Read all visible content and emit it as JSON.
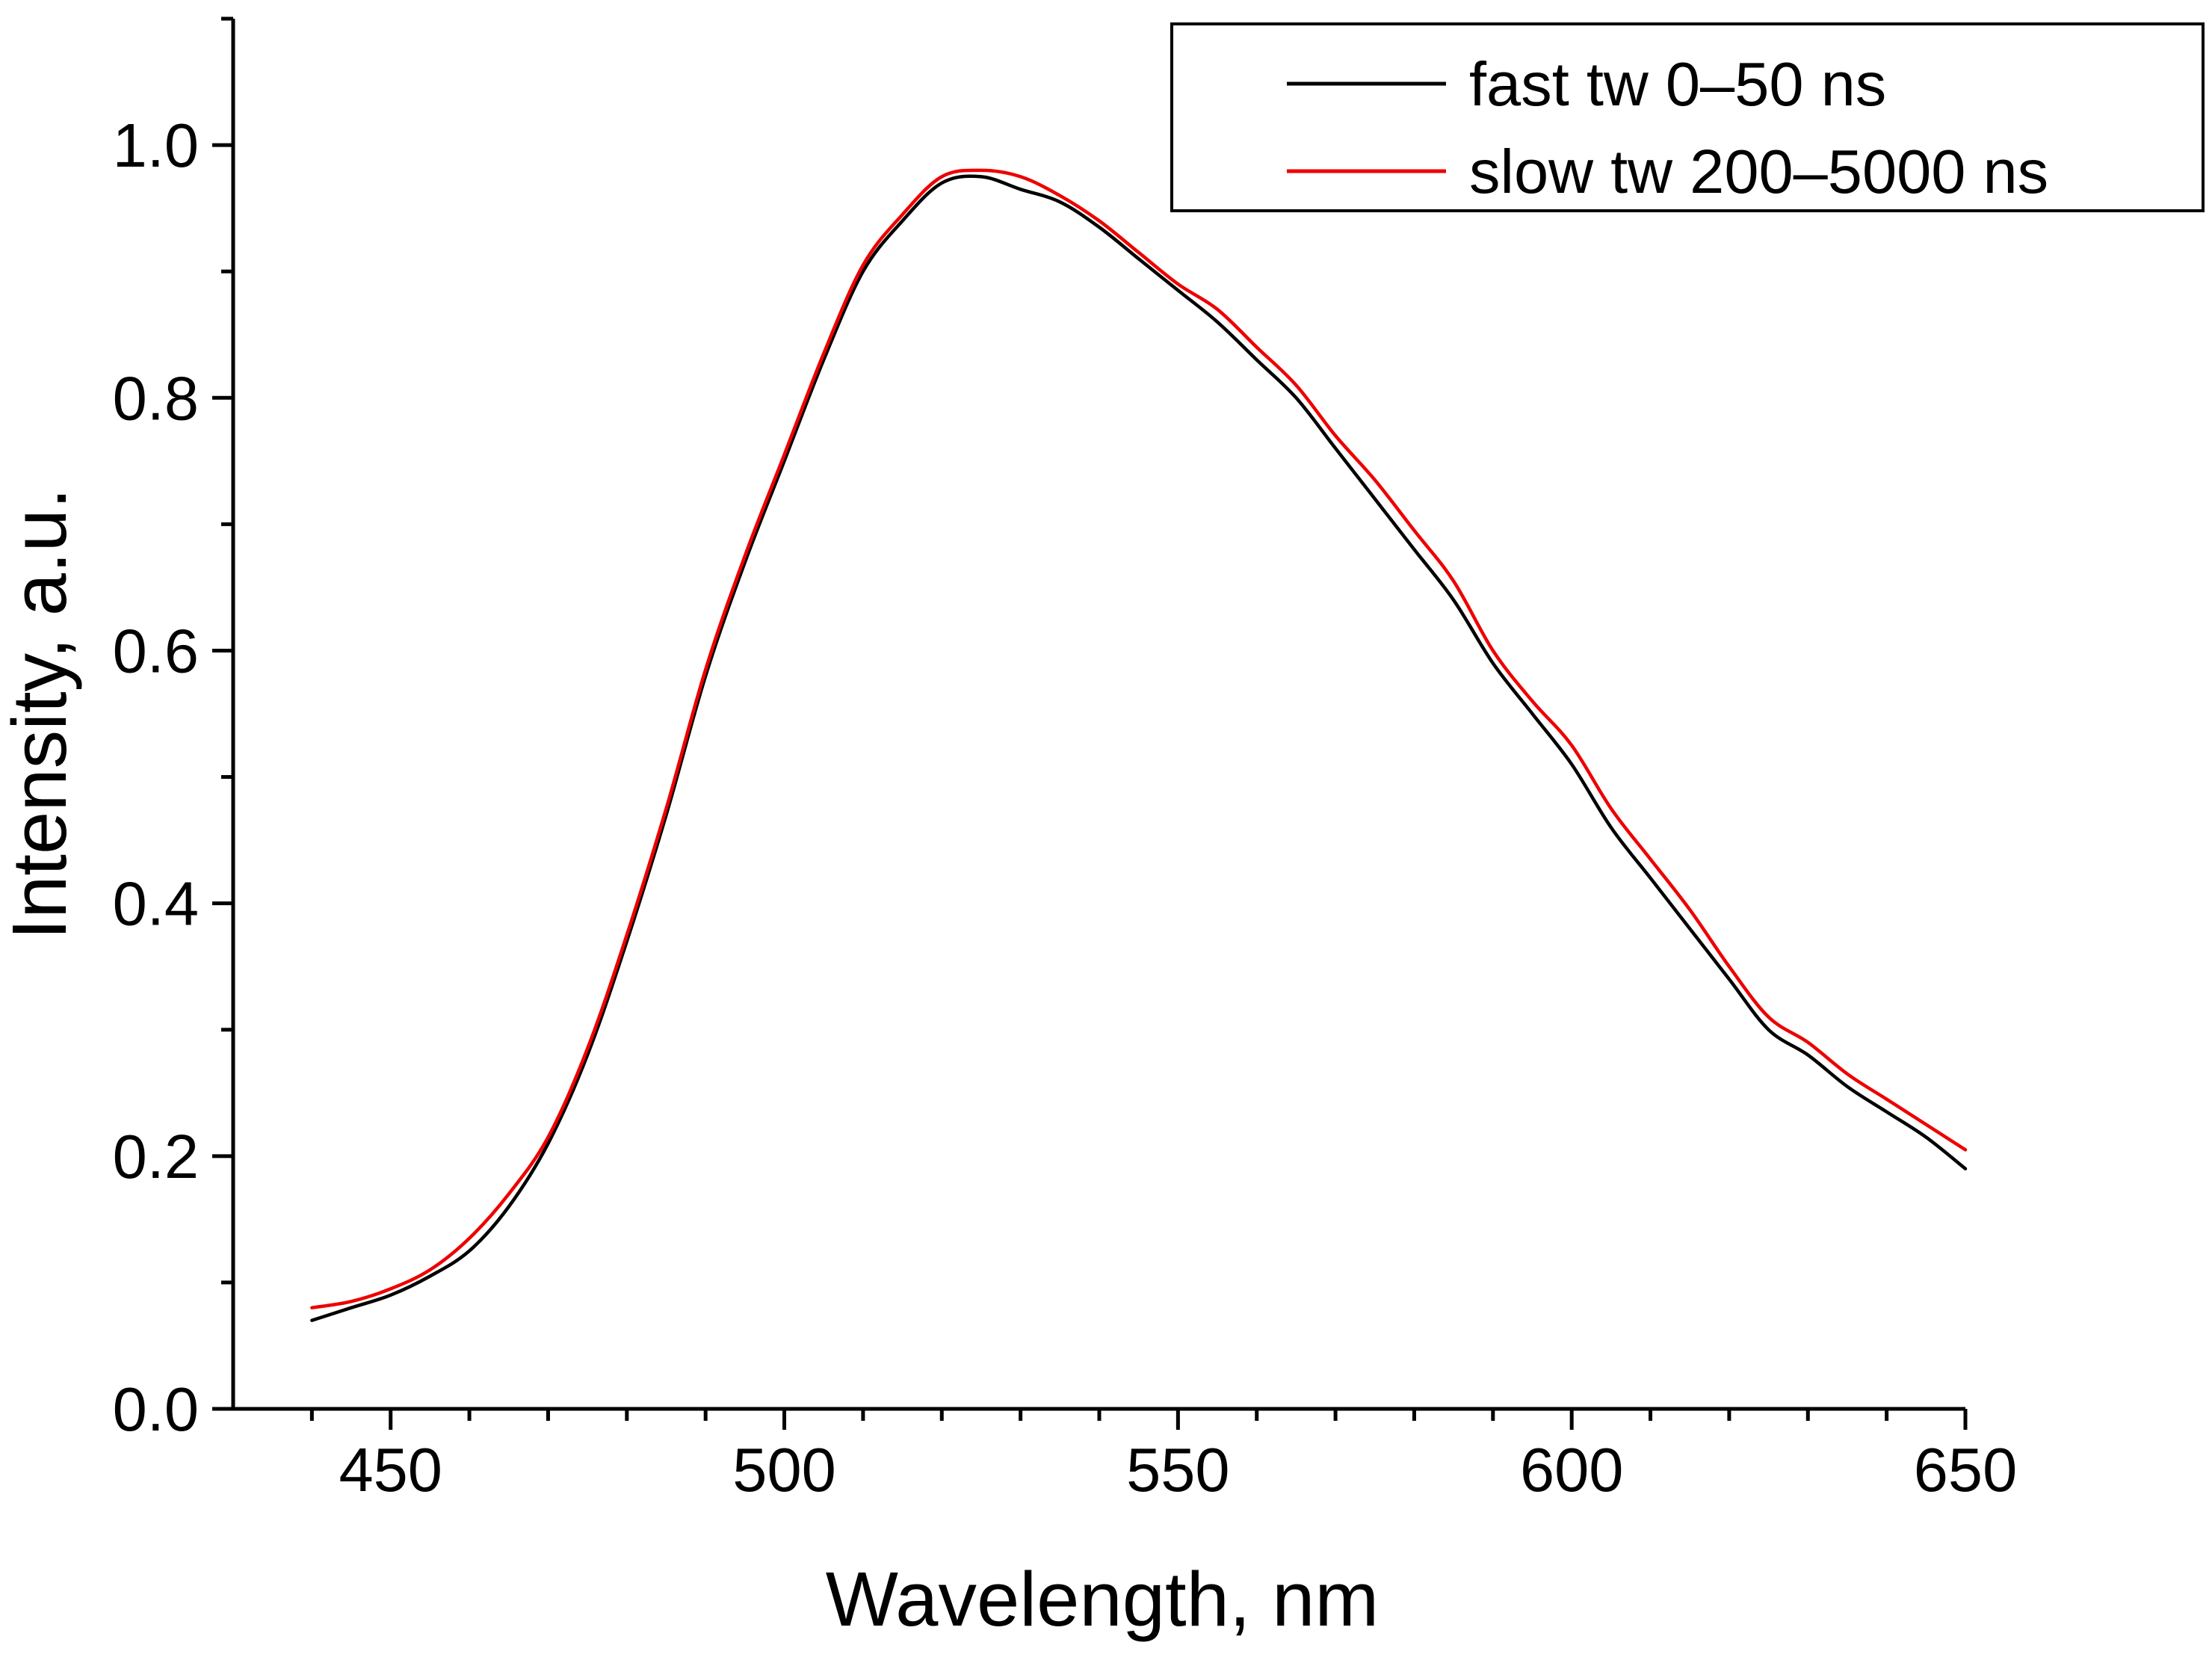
{
  "chart_data": {
    "type": "line",
    "title": "",
    "xlabel": "Wavelength, nm",
    "ylabel": "Intensity, a.u.",
    "xlim": [
      430,
      650
    ],
    "ylim": [
      0,
      1.1
    ],
    "x_ticks": [
      "450",
      "500",
      "550",
      "600",
      "650"
    ],
    "y_ticks": [
      "0.0",
      "0.2",
      "0.4",
      "0.6",
      "0.8",
      "1.0"
    ],
    "grid": false,
    "legend_position": "top-right",
    "x": [
      440,
      445,
      450,
      455,
      460,
      465,
      470,
      475,
      480,
      485,
      490,
      495,
      500,
      505,
      510,
      515,
      520,
      525,
      530,
      535,
      540,
      545,
      550,
      555,
      560,
      565,
      570,
      575,
      580,
      585,
      590,
      595,
      600,
      605,
      610,
      615,
      620,
      625,
      630,
      635,
      640,
      645,
      650
    ],
    "series": [
      {
        "name": "fast tw 0–50 ns",
        "color": "#000000",
        "values": [
          0.07,
          0.08,
          0.09,
          0.105,
          0.125,
          0.16,
          0.21,
          0.28,
          0.37,
          0.47,
          0.58,
          0.67,
          0.75,
          0.83,
          0.9,
          0.94,
          0.97,
          0.975,
          0.965,
          0.955,
          0.935,
          0.91,
          0.885,
          0.86,
          0.83,
          0.8,
          0.76,
          0.72,
          0.68,
          0.64,
          0.59,
          0.55,
          0.51,
          0.46,
          0.42,
          0.38,
          0.34,
          0.3,
          0.28,
          0.255,
          0.235,
          0.215,
          0.19
        ]
      },
      {
        "name": "slow tw 200–5000 ns",
        "color": "#ee0000",
        "values": [
          0.08,
          0.085,
          0.095,
          0.11,
          0.135,
          0.17,
          0.215,
          0.285,
          0.375,
          0.475,
          0.585,
          0.675,
          0.755,
          0.835,
          0.905,
          0.945,
          0.975,
          0.98,
          0.975,
          0.96,
          0.94,
          0.915,
          0.89,
          0.87,
          0.84,
          0.81,
          0.77,
          0.735,
          0.695,
          0.655,
          0.6,
          0.56,
          0.525,
          0.475,
          0.435,
          0.395,
          0.35,
          0.31,
          0.29,
          0.265,
          0.245,
          0.225,
          0.205
        ]
      }
    ]
  }
}
